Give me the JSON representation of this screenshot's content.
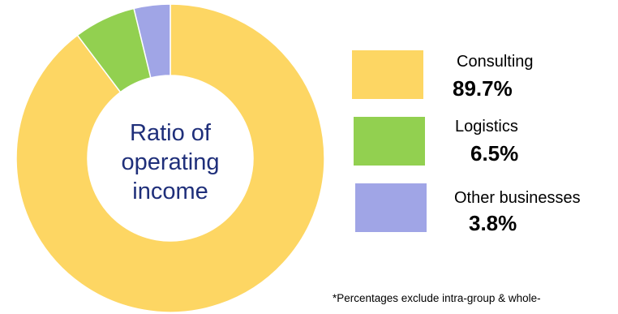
{
  "chart_data": {
    "type": "donut",
    "center_label": [
      "Ratio of",
      "operating",
      "income"
    ],
    "categories": [
      "Consulting",
      "Logistics",
      "Other businesses"
    ],
    "values": [
      89.7,
      6.5,
      3.8
    ],
    "value_labels": [
      "89.7%",
      "6.5%",
      "3.8%"
    ],
    "colors": [
      "#fdd663",
      "#92d050",
      "#a0a5e6"
    ],
    "legend_position": "right",
    "footnote": "*Percentages exclude intra-group & whole-"
  }
}
